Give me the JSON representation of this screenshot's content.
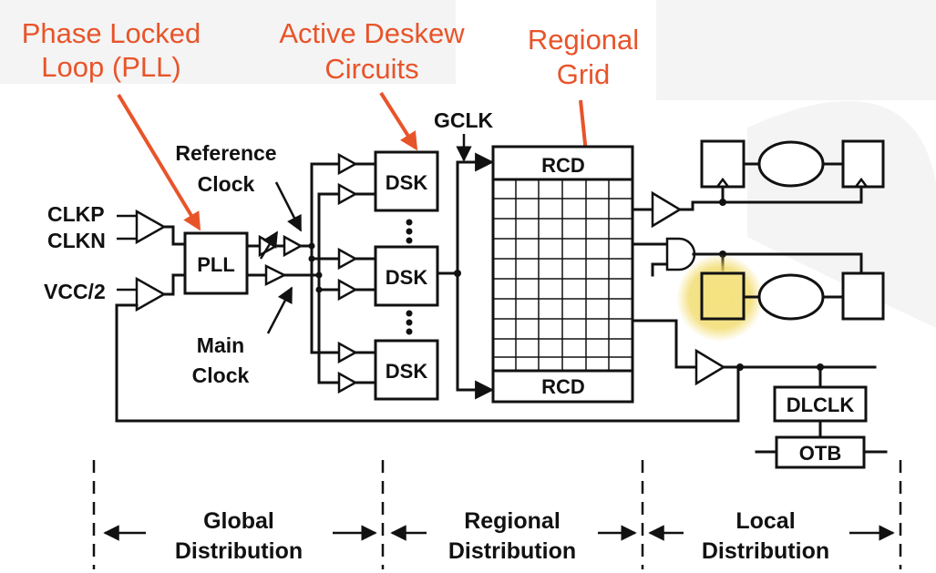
{
  "callouts": {
    "pll_line1": "Phase Locked",
    "pll_line2": "Loop (PLL)",
    "deskew_line1": "Active Deskew",
    "deskew_line2": "Circuits",
    "grid_line1": "Regional",
    "grid_line2": "Grid"
  },
  "labels": {
    "clkp": "CLKP",
    "clkn": "CLKN",
    "vcc2": "VCC/2",
    "pll": "PLL",
    "ref_line1": "Reference",
    "ref_line2": "Clock",
    "main_line1": "Main",
    "main_line2": "Clock",
    "gclk": "GCLK",
    "dsk": "DSK",
    "rcd": "RCD",
    "dlclk": "DLCLK",
    "otb": "OTB"
  },
  "sections": {
    "global_line1": "Global",
    "global_line2": "Distribution",
    "regional_line1": "Regional",
    "regional_line2": "Distribution",
    "local_line1": "Local",
    "local_line2": "Distribution"
  },
  "colors": {
    "callout": "#e8542a",
    "highlight": "#f2dc5a"
  }
}
